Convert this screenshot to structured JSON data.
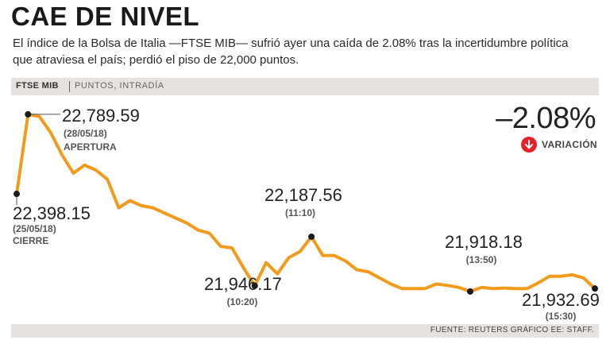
{
  "header": {
    "title": "CAE DE NIVEL",
    "subtitle": "El índice de la Bolsa de Italia —FTSE MIB— sufrió ayer una caída de 2.08% tras la incertidumbre política que atraviesa el país; perdió el piso de 22,000 puntos."
  },
  "band": {
    "label": "FTSE MIB",
    "sublabel": "PUNTOS, INTRADÍA"
  },
  "variation": {
    "value": "–2.08%",
    "label": "VARIACIÓN",
    "icon": "down-arrow-icon",
    "color": "#e8202a"
  },
  "footer": {
    "source": "FUENTE: REUTERS GRÁFICO EE: STAFF."
  },
  "colors": {
    "line": "#f29a1c",
    "marker": "#1a1a1a",
    "band": "#e6e2dd"
  },
  "chart_data": {
    "type": "line",
    "title": "FTSE MIB",
    "ylabel": "Puntos",
    "xlabel": "",
    "ylim": [
      21820,
      22840
    ],
    "grid": false,
    "series": [
      {
        "name": "FTSE MIB intradía",
        "values": [
          22398.15,
          22789.59,
          22779,
          22700,
          22590,
          22500,
          22540,
          22515,
          22470,
          22330,
          22365,
          22340,
          22330,
          22305,
          22280,
          22255,
          22220,
          22205,
          22140,
          22132,
          22035,
          21946.17,
          22060,
          22005,
          22085,
          22115,
          22187.56,
          22095,
          22095,
          22068,
          22025,
          22015,
          21985,
          21955,
          21932,
          21932,
          21932,
          21955,
          21948,
          21938,
          21918.18,
          21938,
          21932,
          21935,
          21932,
          21932,
          21960,
          21993,
          21993,
          22000,
          21985,
          21932.69
        ]
      }
    ],
    "annotations": [
      {
        "index": 0,
        "value": "22,398.15",
        "date": "(25/05/18)",
        "tag": "CIERRE"
      },
      {
        "index": 1,
        "value": "22,789.59",
        "date": "(28/05/18)",
        "tag": "APERTURA"
      },
      {
        "index": 21,
        "value": "21,946.17",
        "time": "(10:20)"
      },
      {
        "index": 26,
        "value": "22,187.56",
        "time": "(11:10)"
      },
      {
        "index": 40,
        "value": "21,918.18",
        "time": "(13:50)"
      },
      {
        "index": 51,
        "value": "21,932.69",
        "time": "(15:30)"
      }
    ]
  }
}
